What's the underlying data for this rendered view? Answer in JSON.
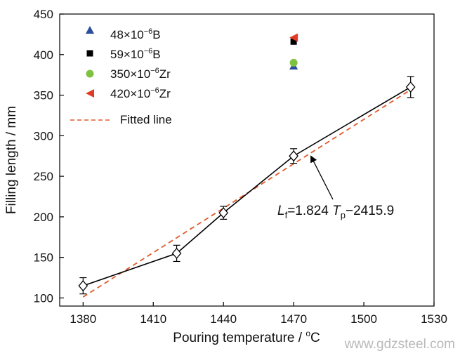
{
  "chart_data": {
    "type": "line",
    "xlabel": "Pouring temperature / ",
    "xlabel_unit_sup": "o",
    "xlabel_unit": "C",
    "ylabel": "Filling length / mm",
    "xlim": [
      1370,
      1530
    ],
    "ylim": [
      90,
      450
    ],
    "xticks": [
      1380,
      1410,
      1440,
      1470,
      1500,
      1530
    ],
    "yticks": [
      100,
      150,
      200,
      250,
      300,
      350,
      400,
      450
    ],
    "grid": false,
    "legend_position": "top-left",
    "series": [
      {
        "x": [
          1380,
          1420,
          1440,
          1470,
          1520
        ],
        "y": [
          115,
          155,
          205,
          275,
          360
        ],
        "yerr": [
          10,
          10,
          8,
          9,
          13
        ],
        "color": "#000000",
        "marker": "open-diamond"
      },
      {
        "name": "48×10⁻⁶B",
        "x": [
          1470
        ],
        "y": [
          386
        ],
        "marker": "triangle-up",
        "color": "#2a4d9c"
      },
      {
        "name": "59×10⁻⁶B",
        "x": [
          1470
        ],
        "y": [
          416
        ],
        "marker": "square",
        "color": "#000000"
      },
      {
        "name": "350×10⁻⁶Zr",
        "x": [
          1470
        ],
        "y": [
          390
        ],
        "marker": "circle",
        "color": "#7fc241"
      },
      {
        "name": "420×10⁻⁶Zr",
        "x": [
          1470
        ],
        "y": [
          421
        ],
        "marker": "triangle-left",
        "color": "#e23b25"
      },
      {
        "name": "Fitted line",
        "type": "dashed-line",
        "x": [
          1380,
          1520
        ],
        "y": [
          101.2,
          356.6
        ],
        "color": "#e05a2b"
      }
    ],
    "annotations": [
      {
        "text_parts": [
          "L",
          "f",
          "=1.824 ",
          "T",
          "p",
          "−2415.9"
        ],
        "arrow_to": [
          1471,
          270
        ]
      }
    ]
  },
  "watermark": "www.gdzsteel.com"
}
